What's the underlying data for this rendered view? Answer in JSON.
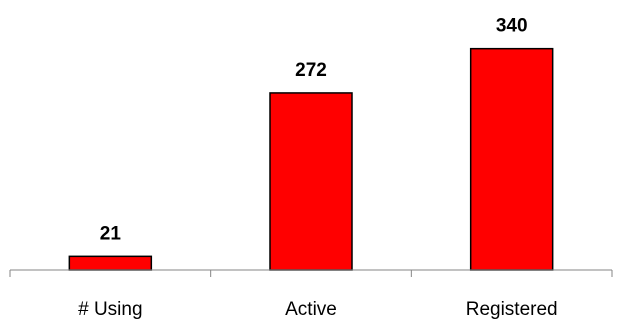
{
  "chart_data": {
    "type": "bar",
    "title": "",
    "xlabel": "",
    "ylabel": "",
    "categories": [
      "# Using",
      "Active",
      "Registered"
    ],
    "values": [
      21,
      272,
      340
    ],
    "data_labels": [
      "21",
      "272",
      "340"
    ],
    "ylim": [
      0,
      380
    ],
    "grid": false,
    "legend": "none",
    "bar_color": "#ff0000",
    "bar_edge_color": "#000000"
  }
}
